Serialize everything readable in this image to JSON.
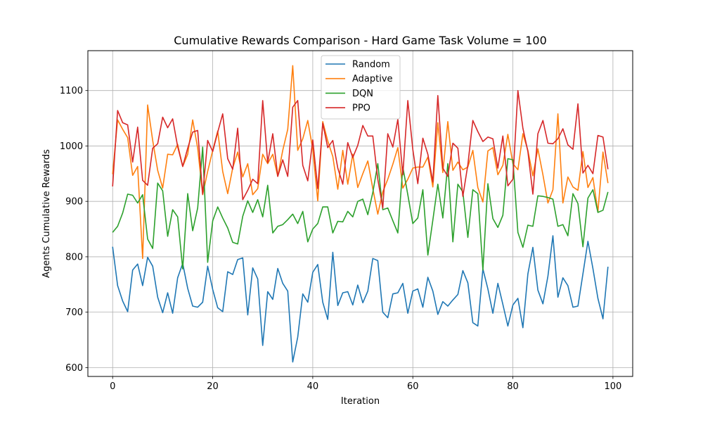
{
  "chart_data": {
    "type": "line",
    "title": "Cumulative Rewards Comparison - Hard Game Task Volume = 100",
    "xlabel": "Iteration",
    "ylabel": "Agents Cumulative Rewards",
    "xlim": [
      -4.95,
      103.95
    ],
    "ylim": [
      584,
      1172
    ],
    "xticks": [
      0,
      20,
      40,
      60,
      80,
      100
    ],
    "yticks": [
      600,
      700,
      800,
      900,
      1000,
      1100
    ],
    "grid": true,
    "legend_position": "top-center",
    "x": [
      0,
      1,
      2,
      3,
      4,
      5,
      6,
      7,
      8,
      9,
      10,
      11,
      12,
      13,
      14,
      15,
      16,
      17,
      18,
      19,
      20,
      21,
      22,
      23,
      24,
      25,
      26,
      27,
      28,
      29,
      30,
      31,
      32,
      33,
      34,
      35,
      36,
      37,
      38,
      39,
      40,
      41,
      42,
      43,
      44,
      45,
      46,
      47,
      48,
      49,
      50,
      51,
      52,
      53,
      54,
      55,
      56,
      57,
      58,
      59,
      60,
      61,
      62,
      63,
      64,
      65,
      66,
      67,
      68,
      69,
      70,
      71,
      72,
      73,
      74,
      75,
      76,
      77,
      78,
      79,
      80,
      81,
      82,
      83,
      84,
      85,
      86,
      87,
      88,
      89,
      90,
      91,
      92,
      93,
      94,
      95,
      96,
      97,
      98,
      99
    ],
    "series": [
      {
        "name": "Random",
        "color": "#1f77b4",
        "values": [
          818,
          748,
          720,
          701,
          776,
          787,
          748,
          799,
          783,
          727,
          699,
          735,
          698,
          762,
          788,
          743,
          711,
          709,
          718,
          783,
          741,
          708,
          701,
          773,
          768,
          795,
          798,
          695,
          780,
          760,
          640,
          737,
          723,
          779,
          752,
          738,
          610,
          655,
          733,
          718,
          772,
          786,
          718,
          687,
          808,
          712,
          735,
          737,
          713,
          749,
          717,
          738,
          797,
          793,
          700,
          690,
          733,
          735,
          752,
          698,
          738,
          742,
          709,
          763,
          738,
          696,
          719,
          711,
          722,
          732,
          775,
          753,
          681,
          675,
          778,
          742,
          698,
          752,
          714,
          675,
          713,
          725,
          672,
          769,
          817,
          740,
          715,
          765,
          838,
          727,
          762,
          748,
          709,
          711,
          769,
          828,
          779,
          725,
          688,
          782
        ]
      },
      {
        "name": "Adaptive",
        "color": "#ff7f0e",
        "values": [
          949,
          1047,
          1030,
          1015,
          947,
          963,
          797,
          1074,
          1010,
          956,
          924,
          985,
          984,
          1003,
          963,
          985,
          1047,
          996,
          912,
          954,
          992,
          1027,
          954,
          914,
          960,
          989,
          944,
          968,
          912,
          923,
          985,
          968,
          985,
          945,
          992,
          1030,
          1145,
          992,
          1013,
          1046,
          994,
          901,
          1044,
          1009,
          981,
          922,
          992,
          931,
          985,
          925,
          950,
          973,
          923,
          877,
          917,
          940,
          967,
          997,
          924,
          940,
          960,
          962,
          962,
          980,
          926,
          1042,
          952,
          1044,
          956,
          971,
          957,
          962,
          992,
          925,
          899,
          991,
          997,
          948,
          965,
          1021,
          968,
          957,
          1022,
          992,
          946,
          995,
          948,
          897,
          921,
          1058,
          897,
          944,
          926,
          920,
          990,
          925,
          943,
          881,
          989,
          933
        ]
      },
      {
        "name": "DQN",
        "color": "#2ca02c",
        "values": [
          844,
          855,
          879,
          913,
          911,
          897,
          912,
          832,
          815,
          933,
          919,
          837,
          885,
          872,
          778,
          914,
          847,
          888,
          998,
          790,
          865,
          890,
          870,
          852,
          826,
          823,
          873,
          901,
          880,
          903,
          872,
          929,
          843,
          855,
          858,
          867,
          877,
          860,
          882,
          827,
          850,
          860,
          890,
          890,
          843,
          864,
          863,
          882,
          872,
          900,
          904,
          876,
          916,
          968,
          885,
          888,
          865,
          843,
          962,
          912,
          860,
          870,
          921,
          803,
          866,
          931,
          870,
          968,
          827,
          931,
          917,
          835,
          921,
          914,
          776,
          932,
          869,
          853,
          875,
          977,
          975,
          844,
          817,
          857,
          855,
          910,
          909,
          907,
          904,
          855,
          858,
          838,
          914,
          896,
          818,
          906,
          921,
          880,
          884,
          917
        ]
      },
      {
        "name": "PPO",
        "color": "#d62728",
        "values": [
          927,
          1064,
          1042,
          1038,
          971,
          1034,
          938,
          929,
          996,
          1004,
          1052,
          1033,
          1049,
          999,
          963,
          996,
          1025,
          1028,
          913,
          1010,
          990,
          1025,
          1058,
          977,
          958,
          1032,
          903,
          920,
          940,
          932,
          1082,
          970,
          1022,
          945,
          975,
          945,
          1070,
          1082,
          965,
          937,
          1011,
          923,
          1041,
          997,
          1010,
          960,
          931,
          1006,
          979,
          1001,
          1037,
          1018,
          1018,
          940,
          888,
          1022,
          998,
          1048,
          948,
          1082,
          994,
          932,
          1014,
          985,
          935,
          1091,
          960,
          945,
          1005,
          996,
          909,
          966,
          1046,
          1026,
          1008,
          1016,
          1013,
          960,
          1018,
          928,
          940,
          1100,
          1032,
          990,
          913,
          1022,
          1046,
          1005,
          1004,
          1013,
          1031,
          1002,
          994,
          1076,
          951,
          965,
          950,
          1019,
          1016,
          958
        ]
      }
    ]
  }
}
